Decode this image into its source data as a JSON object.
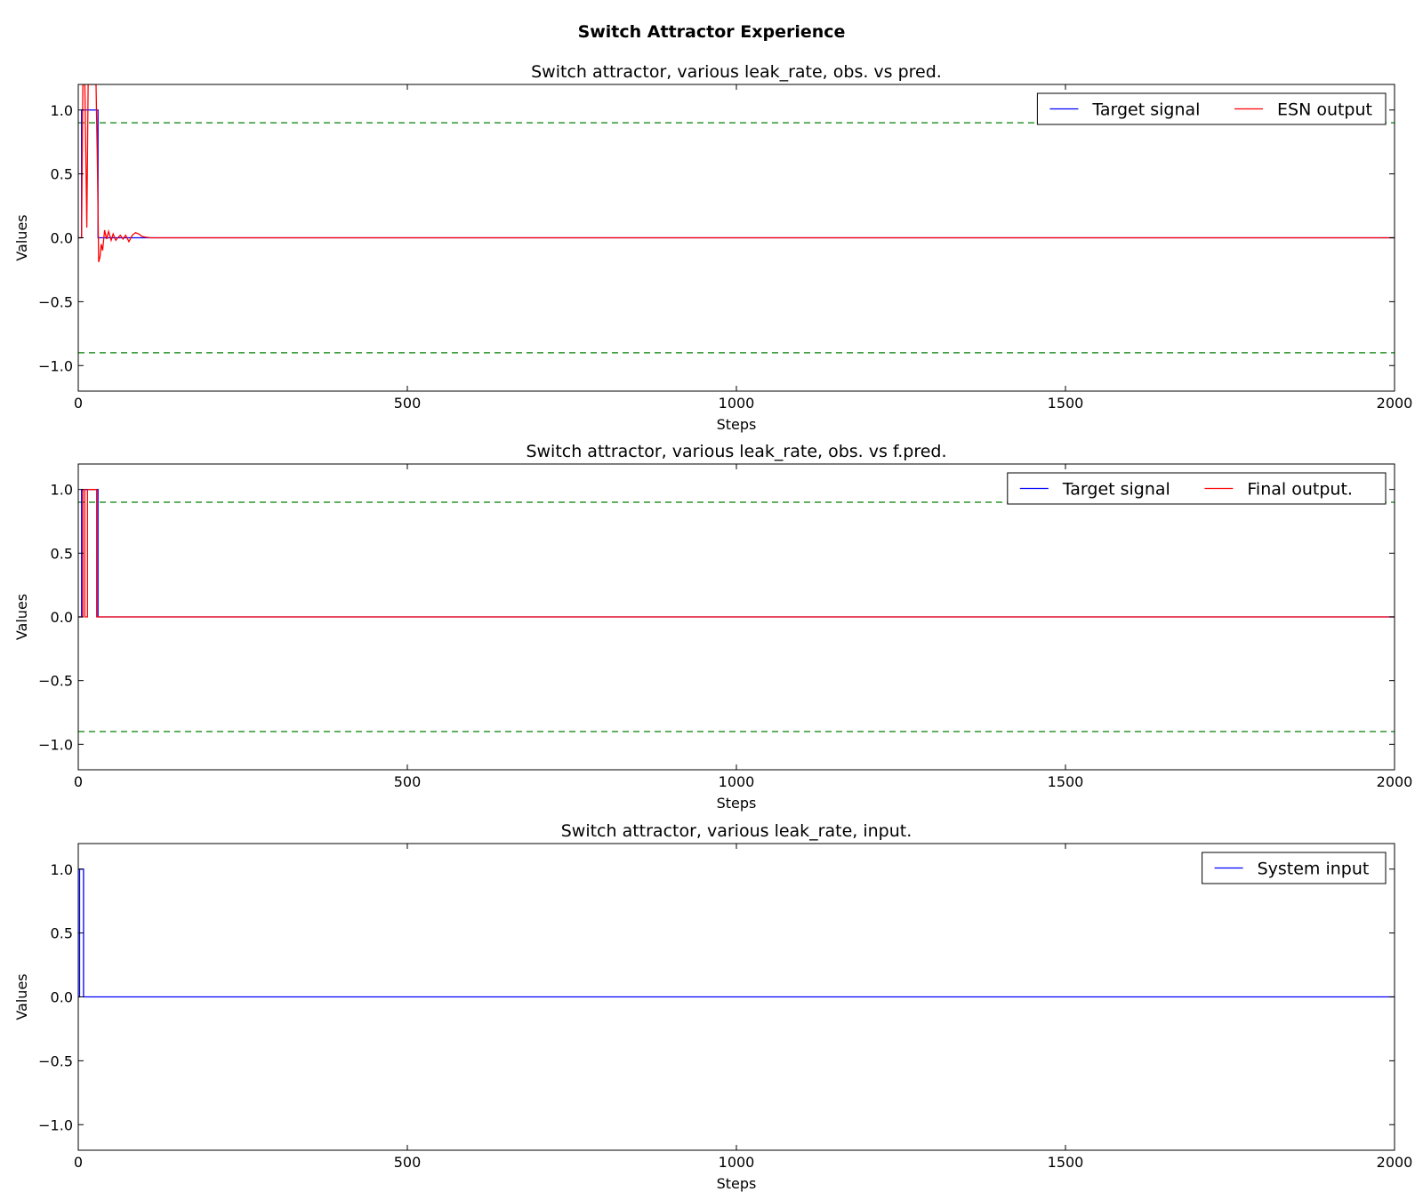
{
  "figure": {
    "title": "Switch Attractor Experience"
  },
  "chart_data": [
    {
      "type": "line",
      "title": "Switch attractor, various leak_rate, obs. vs pred.",
      "xlabel": "Steps",
      "ylabel": "Values",
      "xlim": [
        0,
        2000
      ],
      "ylim": [
        -1.2,
        1.2
      ],
      "xticks": [
        0,
        500,
        1000,
        1500,
        2000
      ],
      "yticks": [
        -1.0,
        -0.5,
        0.0,
        0.5,
        1.0
      ],
      "ytick_labels": [
        "−1.0",
        "−0.5",
        "0.0",
        "0.5",
        "1.0"
      ],
      "legend_position": "top-right",
      "legend_columns": 2,
      "hlines": [
        {
          "y": 0.9,
          "color": "#008000",
          "style": "dashed"
        },
        {
          "y": -0.9,
          "color": "#008000",
          "style": "dashed"
        }
      ],
      "series": [
        {
          "name": "Target signal",
          "color": "#0000ff",
          "points": [
            [
              0,
              0
            ],
            [
              5,
              0
            ],
            [
              5,
              1
            ],
            [
              30,
              1
            ],
            [
              30,
              0
            ],
            [
              2000,
              0
            ]
          ]
        },
        {
          "name": "ESN output",
          "color": "#ff0000",
          "points": [
            [
              0,
              0
            ],
            [
              5,
              0
            ],
            [
              7,
              1.2
            ],
            [
              10,
              1.2
            ],
            [
              13,
              0.08
            ],
            [
              15,
              1.2
            ],
            [
              27,
              1.2
            ],
            [
              29,
              0.6
            ],
            [
              31,
              -0.19
            ],
            [
              33,
              -0.15
            ],
            [
              35,
              -0.05
            ],
            [
              37,
              -0.1
            ],
            [
              40,
              0.06
            ],
            [
              43,
              -0.01
            ],
            [
              46,
              0.05
            ],
            [
              50,
              -0.02
            ],
            [
              53,
              0.03
            ],
            [
              57,
              -0.02
            ],
            [
              60,
              0.0
            ],
            [
              64,
              0.02
            ],
            [
              68,
              -0.01
            ],
            [
              72,
              0.02
            ],
            [
              77,
              -0.03
            ],
            [
              82,
              0.02
            ],
            [
              87,
              0.04
            ],
            [
              92,
              0.03
            ],
            [
              97,
              0.01
            ],
            [
              102,
              0.005
            ],
            [
              110,
              0.0
            ],
            [
              2000,
              0
            ]
          ]
        }
      ]
    },
    {
      "type": "line",
      "title": "Switch attractor, various leak_rate, obs. vs f.pred.",
      "xlabel": "Steps",
      "ylabel": "Values",
      "xlim": [
        0,
        2000
      ],
      "ylim": [
        -1.2,
        1.2
      ],
      "xticks": [
        0,
        500,
        1000,
        1500,
        2000
      ],
      "yticks": [
        -1.0,
        -0.5,
        0.0,
        0.5,
        1.0
      ],
      "ytick_labels": [
        "−1.0",
        "−0.5",
        "0.0",
        "0.5",
        "1.0"
      ],
      "legend_position": "top-right",
      "legend_columns": 2,
      "hlines": [
        {
          "y": 0.9,
          "color": "#008000",
          "style": "dashed"
        },
        {
          "y": -0.9,
          "color": "#008000",
          "style": "dashed"
        }
      ],
      "series": [
        {
          "name": "Target signal",
          "color": "#0000ff",
          "points": [
            [
              0,
              0
            ],
            [
              5,
              0
            ],
            [
              5,
              1
            ],
            [
              30,
              1
            ],
            [
              30,
              0
            ],
            [
              2000,
              0
            ]
          ]
        },
        {
          "name": "Final output.",
          "color": "#ff0000",
          "points": [
            [
              0,
              0
            ],
            [
              7,
              0
            ],
            [
              7,
              1
            ],
            [
              10,
              1
            ],
            [
              10,
              0
            ],
            [
              14,
              0
            ],
            [
              14,
              1
            ],
            [
              28,
              1
            ],
            [
              28,
              0
            ],
            [
              2000,
              0
            ]
          ]
        }
      ]
    },
    {
      "type": "line",
      "title": "Switch attractor, various leak_rate, input.",
      "xlabel": "Steps",
      "ylabel": "Values",
      "xlim": [
        0,
        2000
      ],
      "ylim": [
        -1.2,
        1.2
      ],
      "xticks": [
        0,
        500,
        1000,
        1500,
        2000
      ],
      "yticks": [
        -1.0,
        -0.5,
        0.0,
        0.5,
        1.0
      ],
      "ytick_labels": [
        "−1.0",
        "−0.5",
        "0.0",
        "0.5",
        "1.0"
      ],
      "legend_position": "top-right",
      "legend_columns": 1,
      "hlines": [],
      "series": [
        {
          "name": "System input",
          "color": "#0000ff",
          "points": [
            [
              0,
              0
            ],
            [
              2,
              0
            ],
            [
              2,
              1
            ],
            [
              8,
              1
            ],
            [
              8,
              0
            ],
            [
              2000,
              0
            ]
          ]
        }
      ]
    }
  ]
}
